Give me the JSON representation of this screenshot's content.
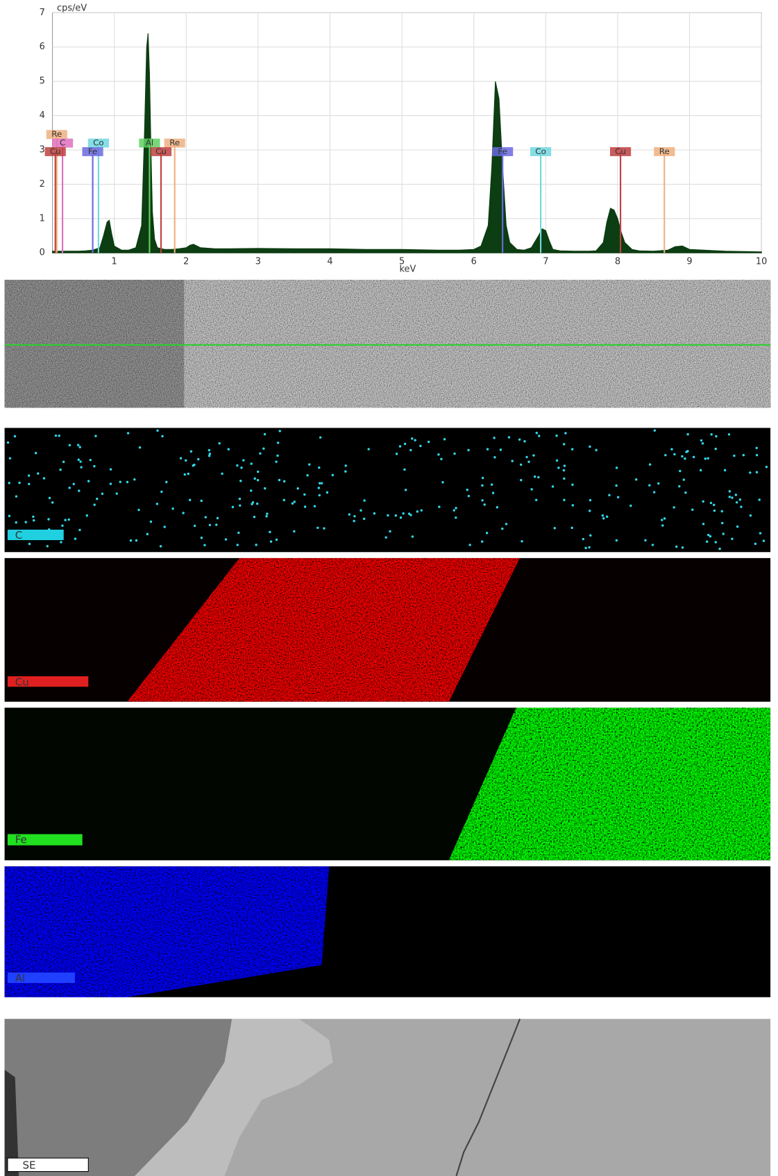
{
  "chart_data": {
    "type": "area",
    "y_label": "cps/eV",
    "x_label": "keV",
    "color": "#0d3d12",
    "x": [
      0.14,
      0.2,
      0.3,
      0.4,
      0.5,
      0.6,
      0.7,
      0.8,
      0.85,
      0.9,
      0.93,
      0.96,
      1.0,
      1.1,
      1.2,
      1.3,
      1.38,
      1.42,
      1.45,
      1.47,
      1.49,
      1.51,
      1.53,
      1.56,
      1.6,
      1.7,
      1.8,
      1.9,
      2.0,
      2.05,
      2.1,
      2.15,
      2.2,
      2.4,
      2.6,
      3.0,
      3.5,
      4.0,
      4.5,
      5.0,
      5.5,
      5.8,
      6.0,
      6.1,
      6.2,
      6.25,
      6.3,
      6.35,
      6.4,
      6.45,
      6.5,
      6.6,
      6.7,
      6.8,
      6.9,
      6.95,
      7.0,
      7.05,
      7.1,
      7.2,
      7.4,
      7.6,
      7.7,
      7.8,
      7.85,
      7.9,
      7.95,
      8.0,
      8.05,
      8.1,
      8.2,
      8.3,
      8.5,
      8.7,
      8.8,
      8.9,
      9.0,
      9.5,
      10.0
    ],
    "values": [
      0.05,
      0.05,
      0.05,
      0.05,
      0.05,
      0.06,
      0.08,
      0.15,
      0.5,
      0.9,
      0.95,
      0.6,
      0.2,
      0.08,
      0.08,
      0.15,
      0.8,
      3.5,
      6.0,
      6.4,
      5.2,
      3.0,
      1.2,
      0.4,
      0.15,
      0.1,
      0.1,
      0.12,
      0.15,
      0.22,
      0.25,
      0.2,
      0.15,
      0.12,
      0.12,
      0.13,
      0.12,
      0.12,
      0.1,
      0.1,
      0.08,
      0.08,
      0.1,
      0.2,
      0.8,
      2.5,
      5.0,
      4.5,
      2.5,
      0.8,
      0.3,
      0.1,
      0.08,
      0.15,
      0.5,
      0.7,
      0.65,
      0.35,
      0.1,
      0.06,
      0.05,
      0.05,
      0.06,
      0.3,
      0.9,
      1.3,
      1.25,
      1.0,
      0.6,
      0.3,
      0.1,
      0.06,
      0.05,
      0.08,
      0.18,
      0.2,
      0.1,
      0.05,
      0.03
    ],
    "markers": [
      {
        "label": "Re",
        "x": 0.2,
        "height": 3.45,
        "color": "#f0b080"
      },
      {
        "label": "C",
        "x": 0.28,
        "height": 3.2,
        "color": "#e070c0"
      },
      {
        "label": "Cu",
        "x": 0.18,
        "height": 2.95,
        "color": "#c04040"
      },
      {
        "label": "Co",
        "x": 0.78,
        "height": 3.2,
        "color": "#70d8e0"
      },
      {
        "label": "Fe",
        "x": 0.7,
        "height": 2.95,
        "color": "#6a6ae0"
      },
      {
        "label": "Al",
        "x": 1.49,
        "height": 3.2,
        "color": "#60d060"
      },
      {
        "label": "Re",
        "x": 1.84,
        "height": 3.2,
        "color": "#f0b080"
      },
      {
        "label": "Cu",
        "x": 1.65,
        "height": 2.95,
        "color": "#c04040"
      },
      {
        "label": "Fe",
        "x": 6.4,
        "height": 2.95,
        "color": "#6a6ae0"
      },
      {
        "label": "Co",
        "x": 6.93,
        "height": 2.95,
        "color": "#70d8e0"
      },
      {
        "label": "Cu",
        "x": 8.04,
        "height": 2.95,
        "color": "#c04040"
      },
      {
        "label": "Re",
        "x": 8.65,
        "height": 2.95,
        "color": "#f0b080"
      }
    ],
    "xlim": [
      0.14,
      10
    ],
    "xticks": [
      1,
      2,
      3,
      4,
      5,
      6,
      7,
      8,
      9,
      10
    ],
    "ylim": [
      0,
      7
    ],
    "yticks": [
      0,
      1,
      2,
      3,
      4,
      5,
      6,
      7
    ],
    "grid": true
  },
  "maps": [
    {
      "label": "C"
    },
    {
      "label": "Cu"
    },
    {
      "label": "Fe"
    },
    {
      "label": "Al"
    }
  ],
  "se_image": {
    "label": "SE"
  }
}
